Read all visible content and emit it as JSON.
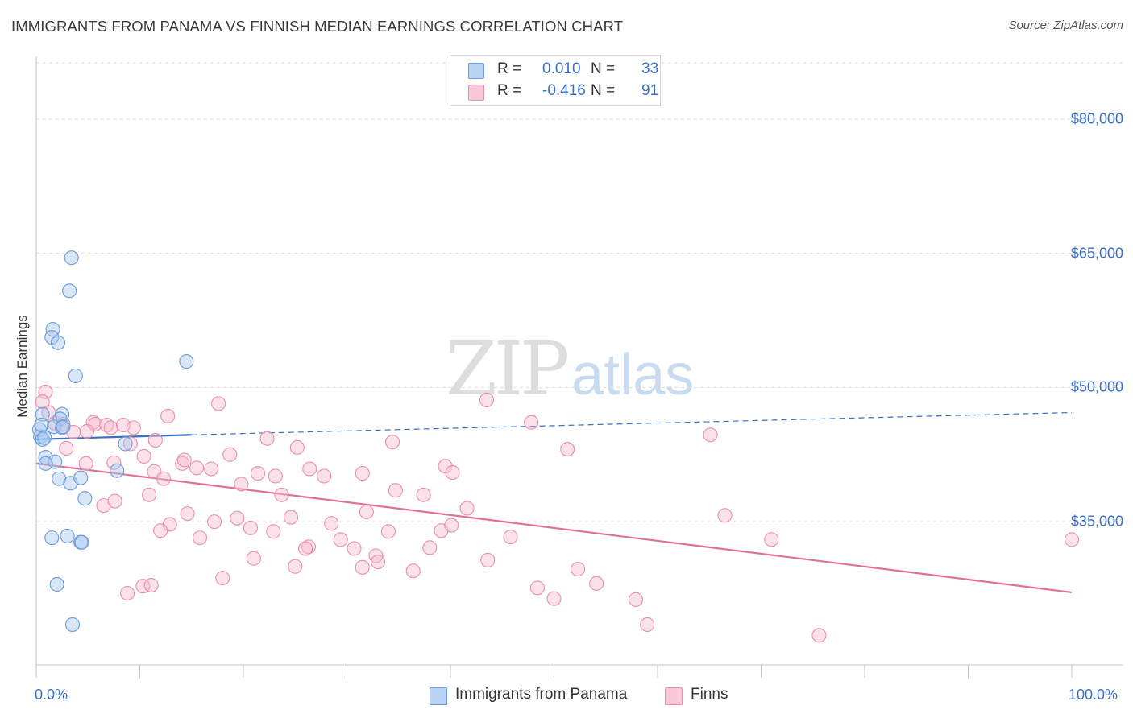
{
  "title": "IMMIGRANTS FROM PANAMA VS FINNISH MEDIAN EARNINGS CORRELATION CHART",
  "source": "Source: ZipAtlas.com",
  "watermark": {
    "zip": "ZIP",
    "atlas": "atlas"
  },
  "legend": {
    "items": [
      {
        "r_label": "R =",
        "r_value": "0.010",
        "n_label": "N =",
        "n_value": "33"
      },
      {
        "r_label": "R =",
        "r_value": "-0.416",
        "n_label": "N =",
        "n_value": "91"
      }
    ]
  },
  "bottom_legend": [
    "Immigrants from Panama",
    "Finns"
  ],
  "colors": {
    "panama_fill": "#a9c8f0",
    "panama_stroke": "#6b9bd8",
    "panama_line": "#3a6fc4",
    "finns_fill": "#f7bcd0",
    "finns_stroke": "#e98fae",
    "finns_line": "#e0709a",
    "tick_label": "#3a6fc4",
    "grid": "#dcdcdc"
  },
  "chart_data": {
    "type": "scatter",
    "title": "IMMIGRANTS FROM PANAMA VS FINNISH MEDIAN EARNINGS CORRELATION CHART",
    "xlabel": "",
    "ylabel": "Median Earnings",
    "xlim": [
      0,
      105
    ],
    "ylim": [
      19000,
      87000
    ],
    "x_tick_labels": [
      "0.0%",
      "100.0%"
    ],
    "y_ticks": [
      35000,
      50000,
      65000,
      80000
    ],
    "y_tick_labels": [
      "$35,000",
      "$50,000",
      "$65,000",
      "$80,000"
    ],
    "series": [
      {
        "name": "Immigrants from Panama",
        "r": 0.01,
        "n": 33,
        "trend": {
          "x": [
            0,
            15
          ],
          "y": [
            44200,
            44700
          ],
          "dashed_to": [
            100,
            47200
          ]
        },
        "points": [
          [
            3.4,
            64500
          ],
          [
            3.2,
            60800
          ],
          [
            1.6,
            56500
          ],
          [
            1.5,
            55600
          ],
          [
            2.1,
            55000
          ],
          [
            3.8,
            51300
          ],
          [
            14.5,
            52900
          ],
          [
            0.6,
            47000
          ],
          [
            2.5,
            47000
          ],
          [
            2.3,
            46500
          ],
          [
            1.7,
            45600
          ],
          [
            2.5,
            45500
          ],
          [
            0.3,
            45300
          ],
          [
            0.4,
            44500
          ],
          [
            0.6,
            44200
          ],
          [
            8.6,
            43700
          ],
          [
            0.9,
            42200
          ],
          [
            1.8,
            41700
          ],
          [
            0.9,
            41500
          ],
          [
            7.8,
            40700
          ],
          [
            2.2,
            39800
          ],
          [
            3.3,
            39300
          ],
          [
            4.3,
            39900
          ],
          [
            4.7,
            37600
          ],
          [
            1.5,
            33200
          ],
          [
            3.0,
            33400
          ],
          [
            4.3,
            32700
          ],
          [
            4.4,
            32700
          ],
          [
            2.0,
            28000
          ],
          [
            3.5,
            23500
          ],
          [
            0.5,
            45800
          ],
          [
            0.8,
            44400
          ],
          [
            2.6,
            45600
          ]
        ]
      },
      {
        "name": "Finns",
        "r": -0.416,
        "n": 91,
        "trend": {
          "x": [
            0,
            100
          ],
          "y": [
            41500,
            27100
          ]
        },
        "points": [
          [
            0.9,
            49500
          ],
          [
            0.6,
            48400
          ],
          [
            1.2,
            47200
          ],
          [
            1.8,
            46000
          ],
          [
            2.6,
            45900
          ],
          [
            3.6,
            45000
          ],
          [
            5.5,
            46100
          ],
          [
            5.7,
            45900
          ],
          [
            6.8,
            45800
          ],
          [
            7.2,
            45500
          ],
          [
            8.4,
            45800
          ],
          [
            9.4,
            45500
          ],
          [
            11.5,
            44100
          ],
          [
            12.7,
            46800
          ],
          [
            14.1,
            41500
          ],
          [
            17.6,
            48200
          ],
          [
            22.3,
            44300
          ],
          [
            23.1,
            40100
          ],
          [
            2.9,
            43200
          ],
          [
            4.9,
            45100
          ],
          [
            7.5,
            41600
          ],
          [
            9.1,
            43700
          ],
          [
            10.4,
            42300
          ],
          [
            11.4,
            40600
          ],
          [
            12.3,
            39800
          ],
          [
            14.3,
            41900
          ],
          [
            15.5,
            41000
          ],
          [
            16.9,
            40900
          ],
          [
            18.7,
            42500
          ],
          [
            19.8,
            39200
          ],
          [
            21.4,
            40400
          ],
          [
            23.7,
            38000
          ],
          [
            25.2,
            43300
          ],
          [
            26.4,
            40900
          ],
          [
            27.8,
            40100
          ],
          [
            31.5,
            40400
          ],
          [
            31.9,
            36100
          ],
          [
            34.7,
            38500
          ],
          [
            34.4,
            43900
          ],
          [
            37.4,
            38000
          ],
          [
            39.5,
            41200
          ],
          [
            40.2,
            40500
          ],
          [
            43.5,
            48600
          ],
          [
            47.8,
            46100
          ],
          [
            51.3,
            43100
          ],
          [
            65.1,
            44700
          ],
          [
            4.8,
            41500
          ],
          [
            6.5,
            36800
          ],
          [
            7.6,
            37300
          ],
          [
            10.9,
            38000
          ],
          [
            12.9,
            34700
          ],
          [
            14.6,
            35900
          ],
          [
            15.8,
            33200
          ],
          [
            17.2,
            35000
          ],
          [
            19.4,
            35400
          ],
          [
            20.7,
            34300
          ],
          [
            22.9,
            33900
          ],
          [
            24.6,
            35500
          ],
          [
            26.3,
            32200
          ],
          [
            28.5,
            34800
          ],
          [
            29.4,
            33000
          ],
          [
            30.7,
            32000
          ],
          [
            31.5,
            29900
          ],
          [
            32.8,
            31200
          ],
          [
            34.0,
            33900
          ],
          [
            36.4,
            29500
          ],
          [
            38.0,
            32100
          ],
          [
            39.1,
            34000
          ],
          [
            40.1,
            34600
          ],
          [
            41.6,
            36500
          ],
          [
            43.6,
            30700
          ],
          [
            45.8,
            33300
          ],
          [
            48.4,
            27600
          ],
          [
            50.0,
            26400
          ],
          [
            52.3,
            29700
          ],
          [
            54.1,
            28100
          ],
          [
            57.9,
            26300
          ],
          [
            59.0,
            23500
          ],
          [
            66.5,
            35700
          ],
          [
            71.0,
            33000
          ],
          [
            75.6,
            22300
          ],
          [
            100.0,
            33000
          ],
          [
            12.0,
            34000
          ],
          [
            25.0,
            30000
          ],
          [
            8.8,
            27000
          ],
          [
            10.3,
            27800
          ],
          [
            11.1,
            27900
          ],
          [
            18.0,
            28700
          ],
          [
            21.0,
            30900
          ],
          [
            26.0,
            32000
          ],
          [
            33.0,
            30500
          ]
        ]
      }
    ]
  }
}
